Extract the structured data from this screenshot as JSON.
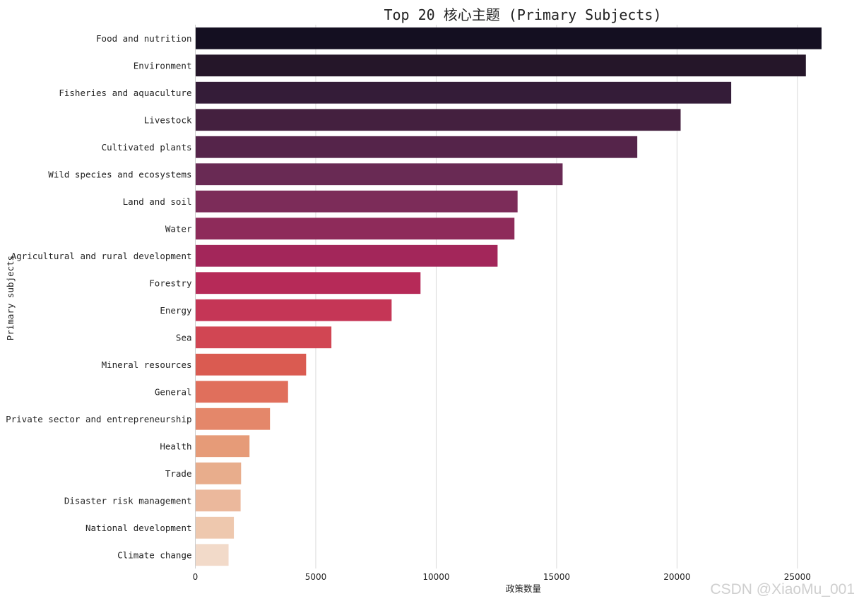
{
  "chart_data": {
    "type": "bar",
    "orientation": "horizontal",
    "title": "Top 20 核心主题 (Primary Subjects)",
    "xlabel": "政策数量",
    "ylabel": "Primary subjects",
    "xlim": [
      0,
      26500
    ],
    "xticks": [
      0,
      5000,
      10000,
      15000,
      20000,
      25000
    ],
    "grid": "vertical",
    "categories": [
      "Food and nutrition",
      "Environment",
      "Fisheries and aquaculture",
      "Livestock",
      "Cultivated plants",
      "Wild species and ecosystems",
      "Land and soil",
      "Water",
      "Agricultural and rural development",
      "Forestry",
      "Energy",
      "Sea",
      "Mineral resources",
      "General",
      "Private sector and entrepreneurship",
      "Health",
      "Trade",
      "Disaster risk management",
      "National development",
      "Climate change"
    ],
    "values": [
      26000,
      25350,
      22250,
      20150,
      18350,
      15250,
      13380,
      13250,
      12550,
      9350,
      8150,
      5650,
      4600,
      3850,
      3100,
      2250,
      1900,
      1880,
      1600,
      1380
    ],
    "colors": [
      "#140f21",
      "#251629",
      "#341c38",
      "#44203f",
      "#55244a",
      "#692a54",
      "#7c2c59",
      "#8e2b5a",
      "#a3265a",
      "#b62a58",
      "#c53656",
      "#d14653",
      "#da5b51",
      "#e06f5c",
      "#e4876a",
      "#e69b78",
      "#e8ad8c",
      "#ebb89c",
      "#eec8ae",
      "#f2dac9"
    ]
  },
  "watermark": "CSDN @XiaoMu_001"
}
